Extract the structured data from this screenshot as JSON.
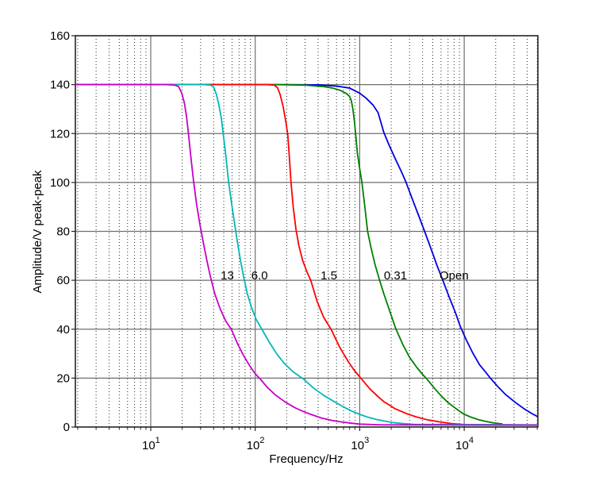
{
  "chart_data": {
    "type": "line",
    "title": "",
    "xlabel": "Frequency/Hz",
    "ylabel": "Amplitude/V peak-peak",
    "x_scale": "log",
    "x_range": [
      1.9,
      50700
    ],
    "y_range": [
      0,
      160
    ],
    "y_ticks": [
      0,
      20,
      40,
      60,
      80,
      100,
      120,
      140,
      160
    ],
    "x_decade_ticks": [
      {
        "value": 10,
        "base": "10",
        "exp": "1"
      },
      {
        "value": 100,
        "base": "10",
        "exp": "2"
      },
      {
        "value": 1000,
        "base": "10",
        "exp": "3"
      },
      {
        "value": 10000,
        "base": "10",
        "exp": "4"
      }
    ],
    "grid": {
      "major_solid": true,
      "minor_dotted": true,
      "legend": "none"
    },
    "colors": {
      "frame": "#262626",
      "major_grid": "#6f6f6f",
      "minor_grid": "#2a2a2a",
      "text": "#000000"
    },
    "annotations": [
      {
        "text": "13",
        "freq": 54,
        "amplitude": 62
      },
      {
        "text": "6.0",
        "freq": 110,
        "amplitude": 62
      },
      {
        "text": "1.5",
        "freq": 507,
        "amplitude": 62
      },
      {
        "text": "0.31",
        "freq": 2200,
        "amplitude": 62
      },
      {
        "text": "Open",
        "freq": 8000,
        "amplitude": 62
      }
    ],
    "series": [
      {
        "name": "Open",
        "color": "#0000e0",
        "points": [
          [
            1.9,
            140
          ],
          [
            200,
            140
          ],
          [
            400,
            139.9
          ],
          [
            600,
            139.4
          ],
          [
            800,
            138.6
          ],
          [
            1000,
            136.5
          ],
          [
            1150,
            134.5
          ],
          [
            1350,
            131.5
          ],
          [
            1500,
            128.5
          ],
          [
            1700,
            120.5
          ],
          [
            1900,
            115.5
          ],
          [
            2200,
            109.5
          ],
          [
            2500,
            104.5
          ],
          [
            2780,
            100
          ],
          [
            3200,
            93
          ],
          [
            3700,
            86
          ],
          [
            4180,
            80
          ],
          [
            4800,
            73
          ],
          [
            5500,
            66
          ],
          [
            6240,
            60
          ],
          [
            7200,
            53
          ],
          [
            8200,
            47
          ],
          [
            9200,
            41
          ],
          [
            10500,
            35.5
          ],
          [
            12000,
            30.5
          ],
          [
            14000,
            25.5
          ],
          [
            16000,
            22.5
          ],
          [
            17800,
            20
          ],
          [
            21000,
            16.5
          ],
          [
            25000,
            13.2
          ],
          [
            31000,
            10
          ],
          [
            37000,
            7.6
          ],
          [
            44000,
            5.6
          ],
          [
            50700,
            4.2
          ]
        ]
      },
      {
        "name": "0.31",
        "color": "#008000",
        "points": [
          [
            1.9,
            140
          ],
          [
            150,
            140
          ],
          [
            300,
            139.8
          ],
          [
            450,
            139.2
          ],
          [
            550,
            138.6
          ],
          [
            650,
            137.7
          ],
          [
            750,
            136.3
          ],
          [
            800,
            135.2
          ],
          [
            830,
            133.5
          ],
          [
            860,
            130
          ],
          [
            890,
            125
          ],
          [
            915,
            119.5
          ],
          [
            950,
            112
          ],
          [
            1000,
            105.5
          ],
          [
            1050,
            100
          ],
          [
            1120,
            90
          ],
          [
            1190,
            80
          ],
          [
            1280,
            73.5
          ],
          [
            1400,
            66.5
          ],
          [
            1550,
            60
          ],
          [
            1700,
            54.5
          ],
          [
            1900,
            48.5
          ],
          [
            2200,
            40.5
          ],
          [
            2600,
            33.5
          ],
          [
            3000,
            28.5
          ],
          [
            3500,
            24.5
          ],
          [
            4000,
            21.5
          ],
          [
            4400,
            19.6
          ],
          [
            5200,
            15.8
          ],
          [
            6000,
            12.8
          ],
          [
            7000,
            10
          ],
          [
            8300,
            7.6
          ],
          [
            9800,
            5.4
          ],
          [
            11500,
            4.1
          ],
          [
            13500,
            3.1
          ],
          [
            16000,
            2.3
          ],
          [
            19000,
            1.7
          ],
          [
            23000,
            1.3
          ]
        ]
      },
      {
        "name": "1.5",
        "color": "#ff0000",
        "points": [
          [
            1.9,
            140
          ],
          [
            80,
            140
          ],
          [
            130,
            140
          ],
          [
            152,
            139.8
          ],
          [
            163,
            138.8
          ],
          [
            173,
            136
          ],
          [
            185,
            131
          ],
          [
            196,
            125
          ],
          [
            205,
            119.5
          ],
          [
            212,
            110.5
          ],
          [
            220,
            100
          ],
          [
            231,
            90
          ],
          [
            245,
            81
          ],
          [
            262,
            74
          ],
          [
            285,
            68
          ],
          [
            312,
            63.5
          ],
          [
            340,
            60
          ],
          [
            390,
            51.5
          ],
          [
            450,
            45
          ],
          [
            535,
            39.8
          ],
          [
            640,
            32.8
          ],
          [
            780,
            26.6
          ],
          [
            900,
            22.8
          ],
          [
            1035,
            19.8
          ],
          [
            1250,
            15.6
          ],
          [
            1500,
            12.4
          ],
          [
            1700,
            10.4
          ],
          [
            2200,
            7.4
          ],
          [
            2800,
            5.5
          ],
          [
            3500,
            4.1
          ],
          [
            4500,
            2.9
          ],
          [
            5800,
            2.1
          ],
          [
            7600,
            1.4
          ],
          [
            10000,
            1
          ],
          [
            50700,
            0.8
          ]
        ]
      },
      {
        "name": "6.0",
        "color": "#00b8b8",
        "points": [
          [
            1.9,
            140
          ],
          [
            20,
            140
          ],
          [
            32,
            140
          ],
          [
            37.5,
            139.8
          ],
          [
            40,
            139
          ],
          [
            42.5,
            136
          ],
          [
            45,
            131.5
          ],
          [
            47.5,
            126
          ],
          [
            50,
            118
          ],
          [
            52.5,
            110.5
          ],
          [
            55,
            102
          ],
          [
            58,
            94.5
          ],
          [
            62,
            86
          ],
          [
            67,
            76.5
          ],
          [
            72,
            68.5
          ],
          [
            77,
            62
          ],
          [
            84,
            54.5
          ],
          [
            92,
            49
          ],
          [
            102,
            44
          ],
          [
            115,
            40.2
          ],
          [
            135,
            35
          ],
          [
            160,
            30
          ],
          [
            190,
            26
          ],
          [
            230,
            22.6
          ],
          [
            290,
            19.6
          ],
          [
            360,
            16
          ],
          [
            450,
            13
          ],
          [
            580,
            10.2
          ],
          [
            700,
            8.2
          ],
          [
            850,
            6.4
          ],
          [
            1000,
            5.2
          ],
          [
            1200,
            4
          ],
          [
            1450,
            3.1
          ],
          [
            1750,
            2.4
          ],
          [
            2100,
            1.8
          ],
          [
            2600,
            1.4
          ],
          [
            3300,
            1.1
          ],
          [
            50700,
            0.9
          ]
        ]
      },
      {
        "name": "13",
        "color": "#c800c8",
        "points": [
          [
            1.9,
            140
          ],
          [
            9,
            140
          ],
          [
            14,
            140
          ],
          [
            17,
            139.8
          ],
          [
            18.5,
            139.2
          ],
          [
            19.8,
            136.5
          ],
          [
            21,
            132.5
          ],
          [
            22,
            127
          ],
          [
            22.9,
            120.5
          ],
          [
            24.2,
            110.5
          ],
          [
            25.7,
            100.5
          ],
          [
            27.5,
            91
          ],
          [
            29.5,
            83
          ],
          [
            32,
            75
          ],
          [
            34.5,
            68
          ],
          [
            37,
            62
          ],
          [
            41,
            54.5
          ],
          [
            46,
            48.5
          ],
          [
            52,
            43.5
          ],
          [
            59,
            40
          ],
          [
            67,
            34.5
          ],
          [
            76,
            29.8
          ],
          [
            88,
            25.2
          ],
          [
            100,
            21.8
          ],
          [
            112,
            19.6
          ],
          [
            130,
            16.3
          ],
          [
            155,
            13.2
          ],
          [
            194,
            10.2
          ],
          [
            240,
            7.9
          ],
          [
            290,
            6.3
          ],
          [
            340,
            5.2
          ],
          [
            430,
            3.7
          ],
          [
            540,
            2.7
          ],
          [
            660,
            2.1
          ],
          [
            820,
            1.6
          ],
          [
            1000,
            1.2
          ],
          [
            1600,
            0.9
          ],
          [
            50700,
            0.75
          ]
        ]
      }
    ]
  }
}
